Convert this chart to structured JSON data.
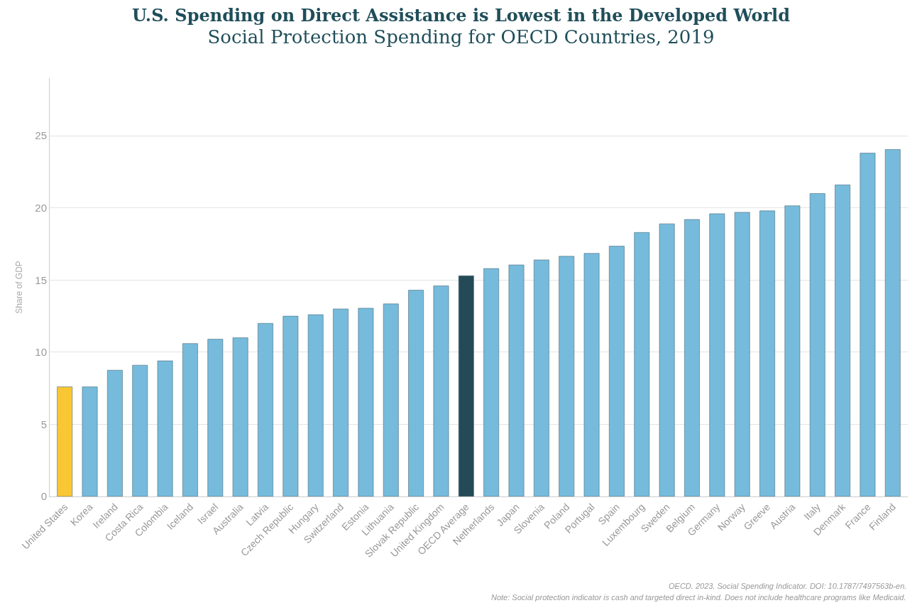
{
  "chart_data": {
    "type": "bar",
    "title": "U.S. Spending on Direct Assistance is Lowest in the Developed World",
    "subtitle": "Social Protection Spending for OECD Countries, 2019",
    "ylabel": "Share of GDP",
    "categories": [
      "United States",
      "Korea",
      "Ireland",
      "Costa Rica",
      "Colombia",
      "Iceland",
      "Israel",
      "Australia",
      "Latvia",
      "Czech Republic",
      "Hungary",
      "Switzerland",
      "Estonia",
      "Lithuania",
      "Slovak Republic",
      "United Kingdom",
      "OECD Average",
      "Netherlands",
      "Japan",
      "Slovenia",
      "Poland",
      "Portugal",
      "Spain",
      "Luxembourg",
      "Sweden",
      "Belgium",
      "Germany",
      "Norway",
      "Greeve",
      "Austria",
      "Italy",
      "Denmark",
      "France",
      "Finland"
    ],
    "values": [
      7.6,
      7.6,
      8.75,
      9.1,
      9.4,
      10.6,
      10.9,
      11.0,
      12.0,
      12.5,
      12.6,
      13.0,
      13.05,
      13.35,
      14.3,
      14.6,
      15.3,
      15.8,
      16.05,
      16.4,
      16.65,
      16.85,
      17.35,
      18.3,
      18.9,
      19.2,
      19.6,
      19.7,
      19.8,
      20.15,
      21.0,
      21.6,
      23.8,
      24.05
    ],
    "colors": [
      "#f9c733",
      "#76bbdb",
      "#76bbdb",
      "#76bbdb",
      "#76bbdb",
      "#76bbdb",
      "#76bbdb",
      "#76bbdb",
      "#76bbdb",
      "#76bbdb",
      "#76bbdb",
      "#76bbdb",
      "#76bbdb",
      "#76bbdb",
      "#76bbdb",
      "#76bbdb",
      "#244a57",
      "#76bbdb",
      "#76bbdb",
      "#76bbdb",
      "#76bbdb",
      "#76bbdb",
      "#76bbdb",
      "#76bbdb",
      "#76bbdb",
      "#76bbdb",
      "#76bbdb",
      "#76bbdb",
      "#76bbdb",
      "#76bbdb",
      "#76bbdb",
      "#76bbdb",
      "#76bbdb",
      "#76bbdb"
    ],
    "ylim": [
      0,
      29
    ],
    "yticks": [
      0,
      5,
      10,
      15,
      20,
      25
    ],
    "grid": "y",
    "annotations": [
      "OECD. 2023. Social Spending Indicator. DOI: 10.1787/7497563b-en.",
      "Note: Social protection indicator is cash and targeted direct in-kind. Does not include healthcare programs like Medicaid."
    ]
  }
}
